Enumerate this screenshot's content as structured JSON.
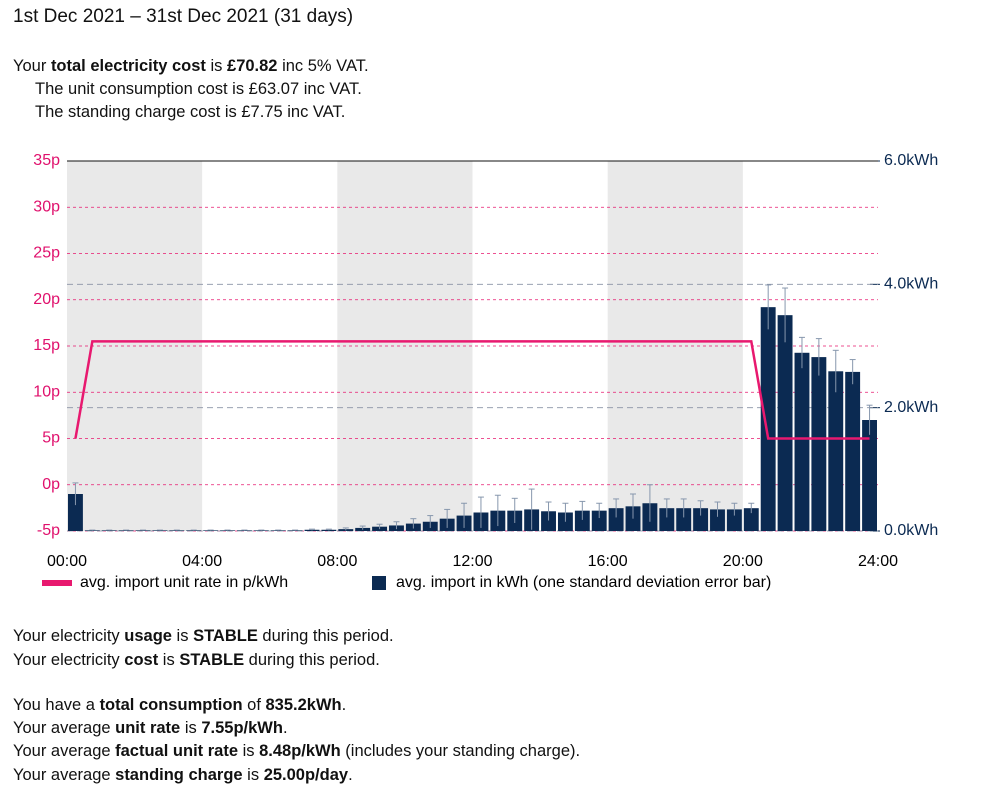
{
  "header": {
    "title": "1st Dec 2021 – 31st Dec 2021 (31 days)"
  },
  "cost": [
    [
      "Your ",
      "total electricity cost",
      " is ",
      "£70.82",
      " inc 5% VAT."
    ],
    [
      "The unit consumption cost is £63.07 inc VAT."
    ],
    [
      "The standing charge cost is £7.75 inc VAT."
    ]
  ],
  "chart_data": {
    "type": "combo",
    "x": [
      0.25,
      0.75,
      1.25,
      1.75,
      2.25,
      2.75,
      3.25,
      3.75,
      4.25,
      4.75,
      5.25,
      5.75,
      6.25,
      6.75,
      7.25,
      7.75,
      8.25,
      8.75,
      9.25,
      9.75,
      10.25,
      10.75,
      11.25,
      11.75,
      12.25,
      12.75,
      13.25,
      13.75,
      14.25,
      14.75,
      15.25,
      15.75,
      16.25,
      16.75,
      17.25,
      17.75,
      18.25,
      18.75,
      19.25,
      19.75,
      20.25,
      20.75,
      21.25,
      21.75,
      22.25,
      22.75,
      23.25,
      23.75
    ],
    "xlim": [
      0,
      24
    ],
    "xticks": [
      {
        "value": 0,
        "label": "00:00"
      },
      {
        "value": 4,
        "label": "04:00"
      },
      {
        "value": 8,
        "label": "08:00"
      },
      {
        "value": 12,
        "label": "12:00"
      },
      {
        "value": 16,
        "label": "16:00"
      },
      {
        "value": 20,
        "label": "20:00"
      },
      {
        "value": 24,
        "label": "24:00"
      }
    ],
    "ylim": [
      -5,
      35
    ],
    "yticks": [
      {
        "value": -5,
        "label": "-5p"
      },
      {
        "value": 0,
        "label": "0p"
      },
      {
        "value": 5,
        "label": "5p"
      },
      {
        "value": 10,
        "label": "10p"
      },
      {
        "value": 15,
        "label": "15p"
      },
      {
        "value": 20,
        "label": "20p"
      },
      {
        "value": 25,
        "label": "25p"
      },
      {
        "value": 30,
        "label": "30p"
      },
      {
        "value": 35,
        "label": "35p"
      }
    ],
    "y2lim": [
      0,
      6
    ],
    "y2ticks": [
      {
        "value": 0,
        "label": "0.0kWh"
      },
      {
        "value": 2,
        "label": "2.0kWh"
      },
      {
        "value": 4,
        "label": "4.0kWh"
      },
      {
        "value": 6,
        "label": "6.0kWh"
      }
    ],
    "grid": true,
    "legend": "bottom",
    "series": [
      {
        "name": "avg. import unit rate in p/kWh",
        "type": "line",
        "color": "#e8196f",
        "values": [
          5,
          15.5,
          15.5,
          15.5,
          15.5,
          15.5,
          15.5,
          15.5,
          15.5,
          15.5,
          15.5,
          15.5,
          15.5,
          15.5,
          15.5,
          15.5,
          15.5,
          15.5,
          15.5,
          15.5,
          15.5,
          15.5,
          15.5,
          15.5,
          15.5,
          15.5,
          15.5,
          15.5,
          15.5,
          15.5,
          15.5,
          15.5,
          15.5,
          15.5,
          15.5,
          15.5,
          15.5,
          15.5,
          15.5,
          15.5,
          15.5,
          5,
          5,
          5,
          5,
          5,
          5,
          5
        ]
      },
      {
        "name": "avg. import in kWh (one standard deviation error bar)",
        "type": "bar",
        "axis": "y2",
        "color": "#0b2a52",
        "values": [
          0.6,
          0.01,
          0.01,
          0.01,
          0.01,
          0.01,
          0.01,
          0.01,
          0.01,
          0.01,
          0.01,
          0.01,
          0.01,
          0.01,
          0.02,
          0.02,
          0.03,
          0.05,
          0.07,
          0.09,
          0.12,
          0.15,
          0.2,
          0.25,
          0.3,
          0.33,
          0.33,
          0.35,
          0.32,
          0.3,
          0.33,
          0.33,
          0.37,
          0.4,
          0.45,
          0.37,
          0.37,
          0.37,
          0.35,
          0.35,
          0.37,
          3.63,
          3.5,
          2.89,
          2.82,
          2.59,
          2.58,
          1.8
        ],
        "errors": [
          0.18,
          0.005,
          0.005,
          0.005,
          0.005,
          0.005,
          0.005,
          0.005,
          0.005,
          0.005,
          0.005,
          0.005,
          0.005,
          0.005,
          0.01,
          0.01,
          0.02,
          0.03,
          0.04,
          0.06,
          0.08,
          0.1,
          0.15,
          0.2,
          0.25,
          0.25,
          0.2,
          0.33,
          0.15,
          0.15,
          0.15,
          0.12,
          0.15,
          0.2,
          0.3,
          0.15,
          0.15,
          0.12,
          0.12,
          0.1,
          0.08,
          0.36,
          0.44,
          0.25,
          0.3,
          0.34,
          0.2,
          0.24
        ]
      }
    ]
  },
  "summary": [
    [
      "Your electricity ",
      "usage",
      " is ",
      "STABLE",
      " during this period."
    ],
    [
      "Your electricity ",
      "cost",
      " is ",
      "STABLE",
      " during this period."
    ],
    [
      "You have a ",
      "total consumption",
      " of ",
      "835.2kWh",
      "."
    ],
    [
      "Your average ",
      "unit rate",
      " is ",
      "7.55p/kWh",
      "."
    ],
    [
      "Your average ",
      "factual unit rate",
      " is ",
      "8.48p/kWh",
      " (includes your standing charge)."
    ],
    [
      "Your average ",
      "standing charge",
      " is ",
      "25.00p/day",
      "."
    ]
  ]
}
